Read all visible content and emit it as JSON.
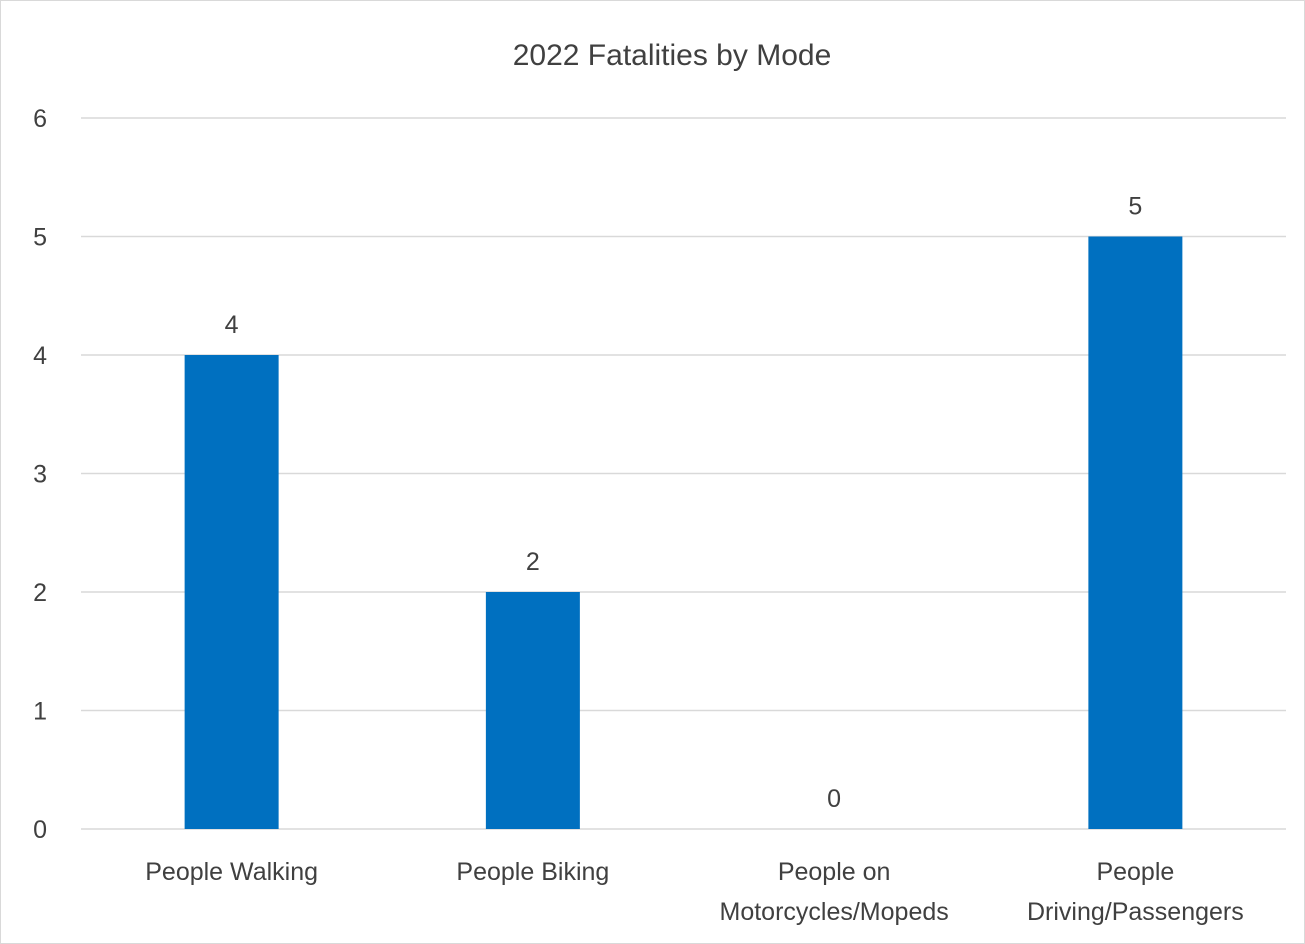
{
  "chart_data": {
    "type": "bar",
    "title": "2022 Fatalities by Mode",
    "xlabel": "",
    "ylabel": "",
    "categories": [
      [
        "People Walking"
      ],
      [
        "People Biking"
      ],
      [
        "People on",
        "Motorcycles/Mopeds"
      ],
      [
        "People",
        "Driving/Passengers"
      ]
    ],
    "values": [
      4,
      2,
      0,
      5
    ],
    "data_labels": [
      "4",
      "2",
      "0",
      "5"
    ],
    "ylim": [
      0,
      6
    ],
    "yticks": [
      "0",
      "1",
      "2",
      "3",
      "4",
      "5",
      "6"
    ],
    "grid": true,
    "legend": "none",
    "bar_color": "#0070C0"
  }
}
